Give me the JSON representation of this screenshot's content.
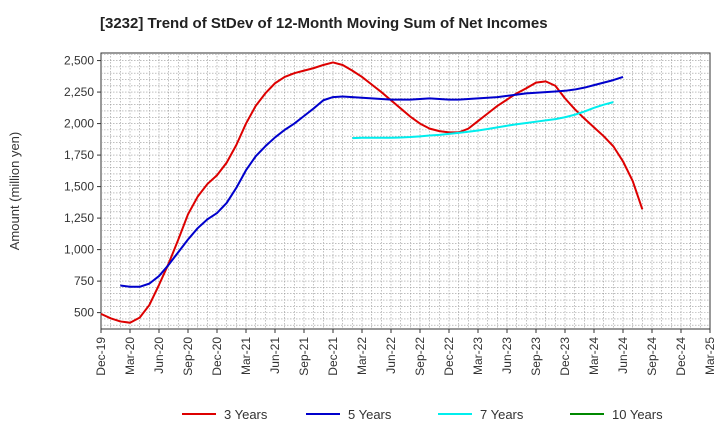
{
  "chart_data": {
    "type": "line",
    "title": "[3232]  Trend of StDev of 12-Month Moving Sum of Net Incomes",
    "ylabel": "Amount (million yen)",
    "xlabel": "",
    "ylim": [
      370,
      2560
    ],
    "yticks": [
      500,
      750,
      1000,
      1250,
      1500,
      1750,
      2000,
      2250,
      2500
    ],
    "ytick_labels": [
      "500",
      "750",
      "1,000",
      "1,250",
      "1,500",
      "1,750",
      "2,000",
      "2,250",
      "2,500"
    ],
    "x_categories": [
      "Dec-19",
      "Mar-20",
      "Jun-20",
      "Sep-20",
      "Dec-20",
      "Mar-21",
      "Jun-21",
      "Sep-21",
      "Dec-21",
      "Mar-22",
      "Jun-22",
      "Sep-22",
      "Dec-22",
      "Mar-23",
      "Jun-23",
      "Sep-23",
      "Dec-23",
      "Mar-24",
      "Jun-24",
      "Sep-24",
      "Dec-24",
      "Mar-25"
    ],
    "grid": true,
    "legend_position": "bottom",
    "series": [
      {
        "name": "3 Years",
        "color": "#dd0000",
        "start_index": 0,
        "values": [
          490,
          455,
          430,
          420,
          460,
          560,
          720,
          890,
          1080,
          1280,
          1420,
          1520,
          1590,
          1690,
          1830,
          2000,
          2140,
          2240,
          2320,
          2370,
          2400,
          2420,
          2440,
          2465,
          2485,
          2465,
          2420,
          2370,
          2310,
          2250,
          2185,
          2120,
          2055,
          2000,
          1960,
          1940,
          1930,
          1930,
          1960,
          2020,
          2080,
          2140,
          2190,
          2240,
          2280,
          2325,
          2335,
          2300,
          2200,
          2115,
          2040,
          1970,
          1900,
          1820,
          1700,
          1545,
          1320
        ]
      },
      {
        "name": "5 Years",
        "color": "#0000cc",
        "start_index": 2,
        "values": [
          715,
          705,
          705,
          730,
          790,
          880,
          980,
          1080,
          1170,
          1240,
          1290,
          1370,
          1490,
          1630,
          1740,
          1820,
          1890,
          1950,
          2000,
          2060,
          2120,
          2185,
          2210,
          2215,
          2210,
          2205,
          2200,
          2195,
          2190,
          2190,
          2190,
          2195,
          2200,
          2195,
          2190,
          2190,
          2195,
          2200,
          2205,
          2210,
          2220,
          2230,
          2240,
          2245,
          2250,
          2255,
          2260,
          2270,
          2285,
          2305,
          2325,
          2345,
          2370
        ]
      },
      {
        "name": "7 Years",
        "color": "#00eeee",
        "start_index": 26,
        "values": [
          1885,
          1888,
          1888,
          1888,
          1888,
          1890,
          1893,
          1898,
          1905,
          1910,
          1918,
          1926,
          1935,
          1945,
          1957,
          1970,
          1983,
          1995,
          2005,
          2015,
          2025,
          2035,
          2050,
          2070,
          2095,
          2125,
          2150,
          2170
        ]
      },
      {
        "name": "10 Years",
        "color": "#008800",
        "start_index": 0,
        "values": []
      }
    ]
  }
}
